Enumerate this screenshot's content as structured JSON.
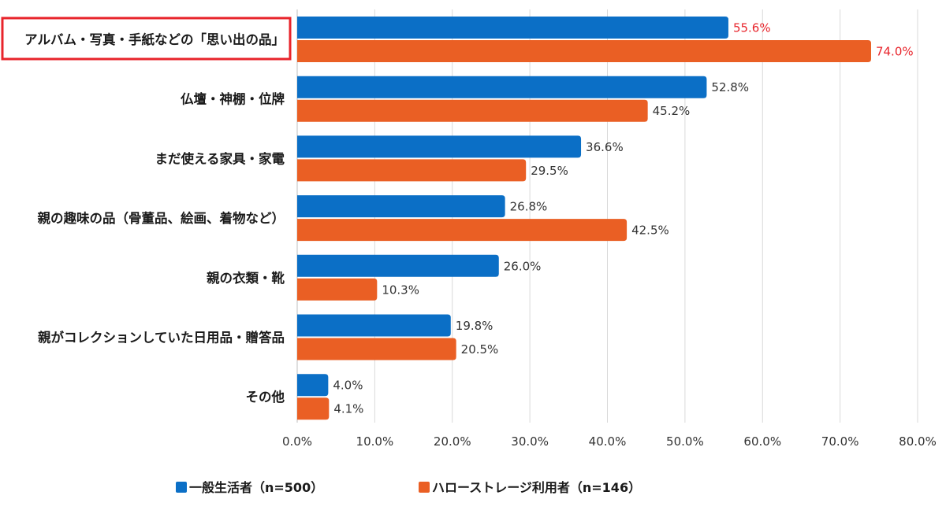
{
  "chart_data": {
    "type": "bar",
    "orientation": "horizontal",
    "categories": [
      "アルバム・写真・手紙などの「思い出の品」",
      "仏壇・神棚・位牌",
      "まだ使える家具・家電",
      "親の趣味の品（骨董品、絵画、着物など）",
      "親の衣類・靴",
      "親がコレクションしていた日用品・贈答品",
      "その他"
    ],
    "series": [
      {
        "name": "一般生活者（n=500）",
        "color": "#0b6fc6",
        "values": [
          55.6,
          52.8,
          36.6,
          26.8,
          26.0,
          19.8,
          4.0
        ],
        "labels": [
          "55.6%",
          "52.8%",
          "36.6%",
          "26.8%",
          "26.0%",
          "19.8%",
          "4.0%"
        ]
      },
      {
        "name": "ハローストレージ利用者（n=146）",
        "color": "#ea5f24",
        "values": [
          74.0,
          45.2,
          29.5,
          42.5,
          10.3,
          20.5,
          4.1
        ],
        "labels": [
          "74.0%",
          "45.2%",
          "29.5%",
          "42.5%",
          "10.3%",
          "20.5%",
          "4.1%"
        ]
      }
    ],
    "xlim": [
      0,
      80
    ],
    "xticks": [
      "0.0%",
      "10.0%",
      "20.0%",
      "30.0%",
      "40.0%",
      "50.0%",
      "60.0%",
      "70.0%",
      "80.0%"
    ],
    "grid": true,
    "legend_position": "bottom",
    "highlight_category_index": 0,
    "highlight_color": "#e8242b"
  }
}
